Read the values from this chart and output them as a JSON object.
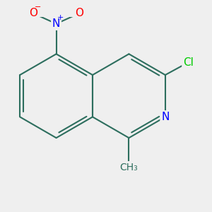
{
  "bg_color": "#efefef",
  "bond_color": "#2d6e5e",
  "bond_width": 1.5,
  "atom_colors": {
    "N": "#0000ff",
    "O": "#ff0000",
    "Cl": "#00cc00",
    "C": "#2d6e5e"
  },
  "font_size": 11,
  "xlim": [
    -3.0,
    3.2
  ],
  "ylim": [
    -2.8,
    2.5
  ]
}
